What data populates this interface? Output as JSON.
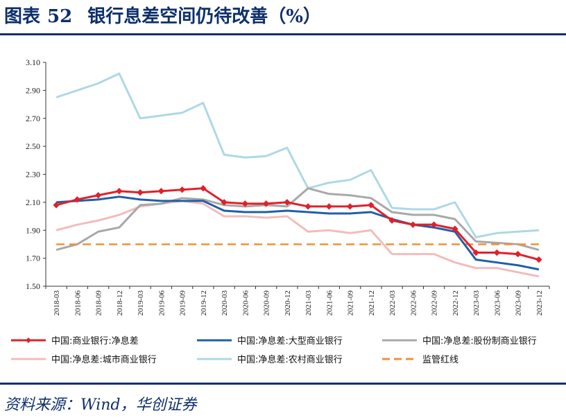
{
  "header": {
    "label": "图表",
    "number": "52",
    "title": "银行息差空间仍待改善（%）"
  },
  "source": "资料来源：Wind，华创证券",
  "chart_data": {
    "type": "line",
    "title": "银行息差空间仍待改善（%）",
    "ylim": [
      1.5,
      3.1
    ],
    "yticks": [
      "1.50",
      "1.70",
      "1.90",
      "2.10",
      "2.30",
      "2.50",
      "2.70",
      "2.90",
      "3.10"
    ],
    "categories": [
      "2018-03",
      "2018-06",
      "2018-09",
      "2018-12",
      "2019-03",
      "2019-06",
      "2019-09",
      "2019-12",
      "2020-03",
      "2020-06",
      "2020-09",
      "2020-12",
      "2021-03",
      "2021-06",
      "2021-09",
      "2021-12",
      "2022-03",
      "2022-06",
      "2022-09",
      "2022-12",
      "2023-03",
      "2023-06",
      "2023-09",
      "2023-12"
    ],
    "series": [
      {
        "name": "中国:商业银行:净息差",
        "color": "#e0202a",
        "marker": "diamond",
        "values": [
          2.08,
          2.12,
          2.15,
          2.18,
          2.17,
          2.18,
          2.19,
          2.2,
          2.1,
          2.09,
          2.09,
          2.1,
          2.07,
          2.07,
          2.07,
          2.08,
          1.97,
          1.94,
          1.94,
          1.91,
          1.74,
          1.74,
          1.73,
          1.69
        ]
      },
      {
        "name": "中国:净息差:大型商业银行",
        "color": "#1f5fa8",
        "marker": "none",
        "values": [
          2.1,
          2.11,
          2.12,
          2.14,
          2.12,
          2.11,
          2.11,
          2.11,
          2.04,
          2.03,
          2.03,
          2.04,
          2.03,
          2.02,
          2.02,
          2.03,
          1.98,
          1.94,
          1.92,
          1.89,
          1.69,
          1.67,
          1.65,
          1.62
        ]
      },
      {
        "name": "中国:净息差:股份制商业银行",
        "color": "#a8a8a8",
        "marker": "none",
        "values": [
          1.76,
          1.8,
          1.89,
          1.92,
          2.08,
          2.09,
          2.13,
          2.12,
          2.08,
          2.07,
          2.08,
          2.07,
          2.2,
          2.16,
          2.15,
          2.13,
          2.03,
          2.01,
          2.01,
          1.98,
          1.82,
          1.81,
          1.8,
          1.76
        ]
      },
      {
        "name": "中国:净息差:城市商业银行",
        "color": "#f2bcbc",
        "marker": "none",
        "values": [
          1.9,
          1.94,
          1.97,
          2.01,
          2.07,
          2.09,
          2.11,
          2.09,
          2.0,
          2.0,
          1.99,
          2.0,
          1.89,
          1.9,
          1.88,
          1.9,
          1.73,
          1.73,
          1.73,
          1.67,
          1.63,
          1.63,
          1.6,
          1.57
        ]
      },
      {
        "name": "中国:净息差:农村商业银行",
        "color": "#add8e6",
        "marker": "none",
        "values": [
          2.85,
          2.9,
          2.95,
          3.02,
          2.7,
          2.72,
          2.74,
          2.81,
          2.44,
          2.42,
          2.43,
          2.49,
          2.2,
          2.24,
          2.26,
          2.33,
          2.06,
          2.05,
          2.05,
          2.1,
          1.85,
          1.88,
          1.89,
          1.9
        ]
      },
      {
        "name": "监管红线",
        "color": "#f0903a",
        "marker": "none",
        "dashed": true,
        "values": [
          1.8,
          1.8,
          1.8,
          1.8,
          1.8,
          1.8,
          1.8,
          1.8,
          1.8,
          1.8,
          1.8,
          1.8,
          1.8,
          1.8,
          1.8,
          1.8,
          1.8,
          1.8,
          1.8,
          1.8,
          1.8,
          1.8,
          1.8,
          1.8
        ]
      }
    ]
  }
}
